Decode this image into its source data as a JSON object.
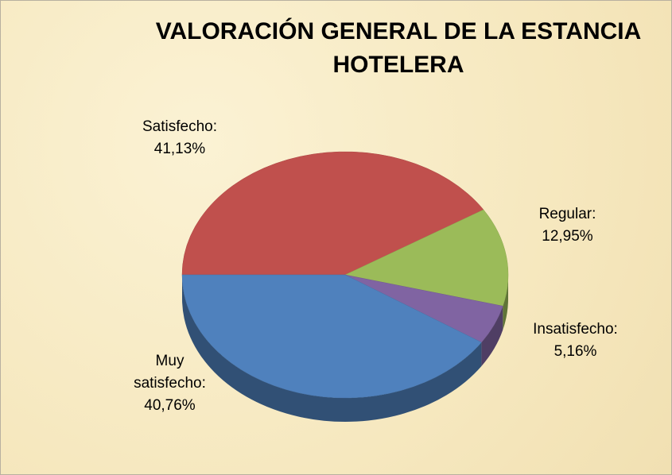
{
  "chart_data": {
    "type": "pie",
    "title": "VALORACIÓN GENERAL DE LA ESTANCIA HOTELERA",
    "categories": [
      "Satisfecho:",
      "Regular:",
      "Insatisfecho:",
      "Muy satisfecho:"
    ],
    "values": [
      41.13,
      12.95,
      5.16,
      40.76
    ],
    "value_labels": [
      "41,13%",
      "12,95%",
      "5,16%",
      "40,76%"
    ],
    "colors": [
      "#c0504d",
      "#9bbb59",
      "#8064a2",
      "#4f81bd"
    ]
  }
}
